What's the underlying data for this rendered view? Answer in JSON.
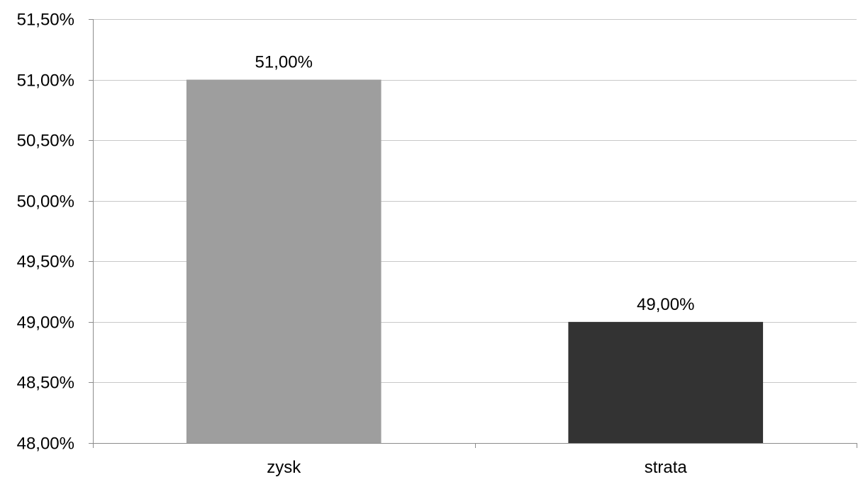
{
  "chart_data": {
    "type": "bar",
    "categories": [
      "zysk",
      "strata"
    ],
    "values": [
      51.0,
      49.0
    ],
    "data_labels": [
      "51,00%",
      "49,00%"
    ],
    "bar_colors": [
      "#9e9e9e",
      "#333333"
    ],
    "title": "",
    "xlabel": "",
    "ylabel": "",
    "ylim": [
      48.0,
      51.5
    ],
    "y_ticks": [
      48.0,
      48.5,
      49.0,
      49.5,
      50.0,
      50.5,
      51.0,
      51.5
    ],
    "y_tick_labels": [
      "48,00%",
      "48,50%",
      "49,00%",
      "49,50%",
      "50,00%",
      "50,50%",
      "51,00%",
      "51,50%"
    ],
    "grid": true,
    "legend": "none"
  }
}
